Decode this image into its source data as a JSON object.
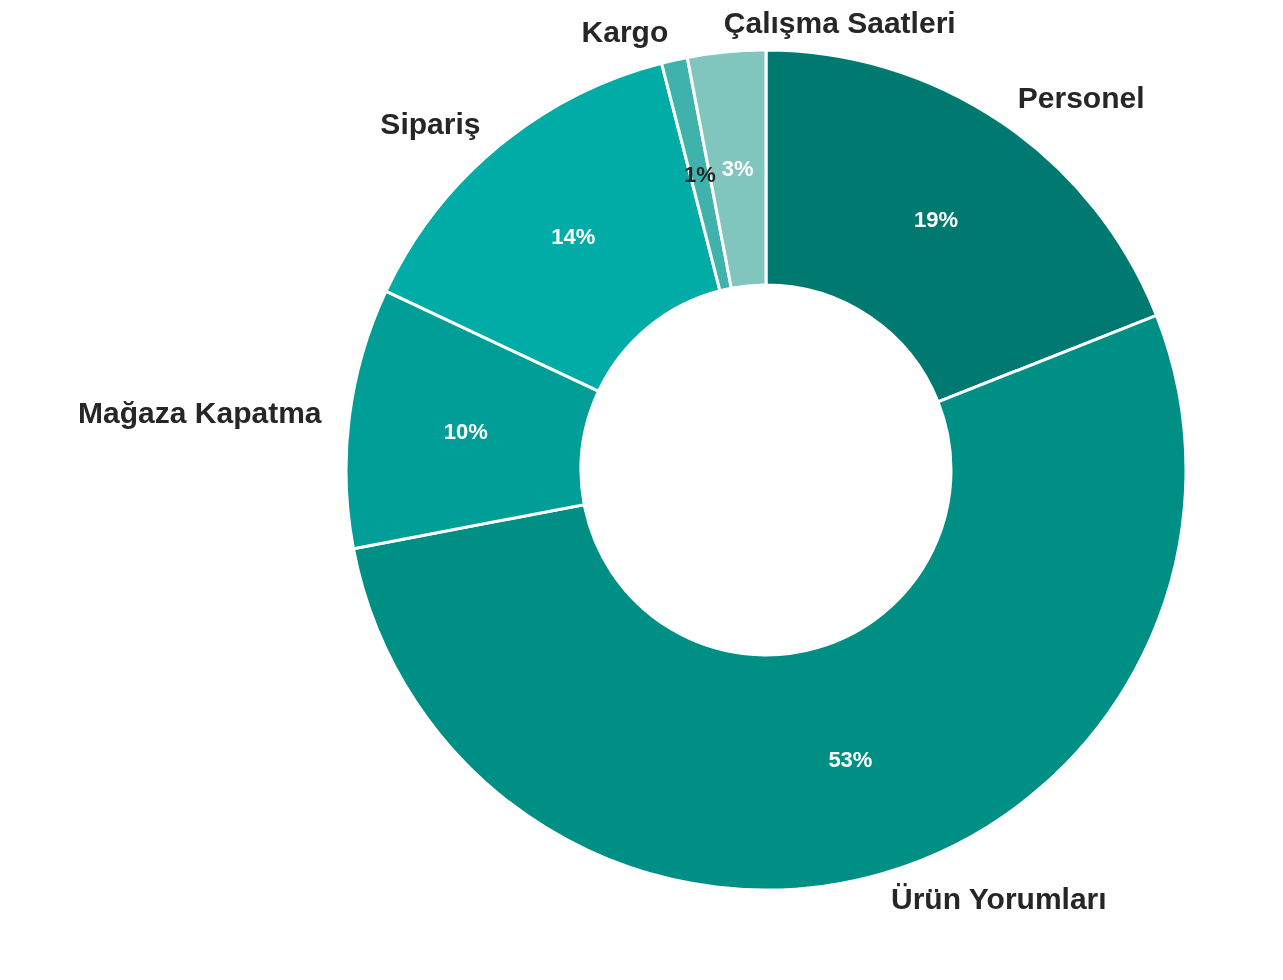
{
  "chart_data": {
    "type": "donut",
    "categories": [
      "Personel",
      "Ürün Yorumları",
      "Mağaza Kapatma",
      "Sipariş",
      "Kargo",
      "Çalışma Saatleri"
    ],
    "values": [
      19,
      53,
      10,
      14,
      1,
      3
    ],
    "value_labels": [
      "19%",
      "53%",
      "10%",
      "14%",
      "1%",
      "3%"
    ],
    "colors": [
      "#007a70",
      "#008f85",
      "#009e96",
      "#00aca5",
      "#3fb3ab",
      "#80c6be"
    ]
  }
}
